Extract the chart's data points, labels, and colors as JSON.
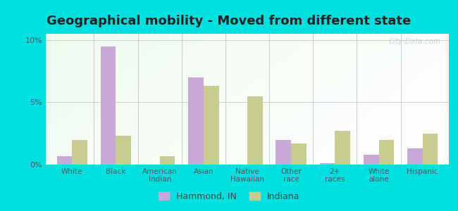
{
  "title": "Geographical mobility - Moved from different state",
  "categories": [
    "White",
    "Black",
    "American\nIndian",
    "Asian",
    "Native\nHawaiian",
    "Other\nrace",
    "2+\nraces",
    "White\nalone",
    "Hispanic"
  ],
  "hammond": [
    0.7,
    9.5,
    0.0,
    7.0,
    0.0,
    2.0,
    0.1,
    0.8,
    1.3
  ],
  "indiana": [
    2.0,
    2.3,
    0.7,
    6.3,
    5.5,
    1.7,
    2.7,
    2.0,
    2.5
  ],
  "hammond_color": "#c8a8d8",
  "indiana_color": "#c8cc90",
  "ylim": [
    0,
    10
  ],
  "yticks": [
    0,
    5,
    10
  ],
  "ytick_labels": [
    "0%",
    "5%",
    "10%"
  ],
  "border_color": "#00e0e0",
  "title_fontsize": 13,
  "legend_hammond": "Hammond, IN",
  "legend_indiana": "Indiana",
  "bar_width": 0.35
}
